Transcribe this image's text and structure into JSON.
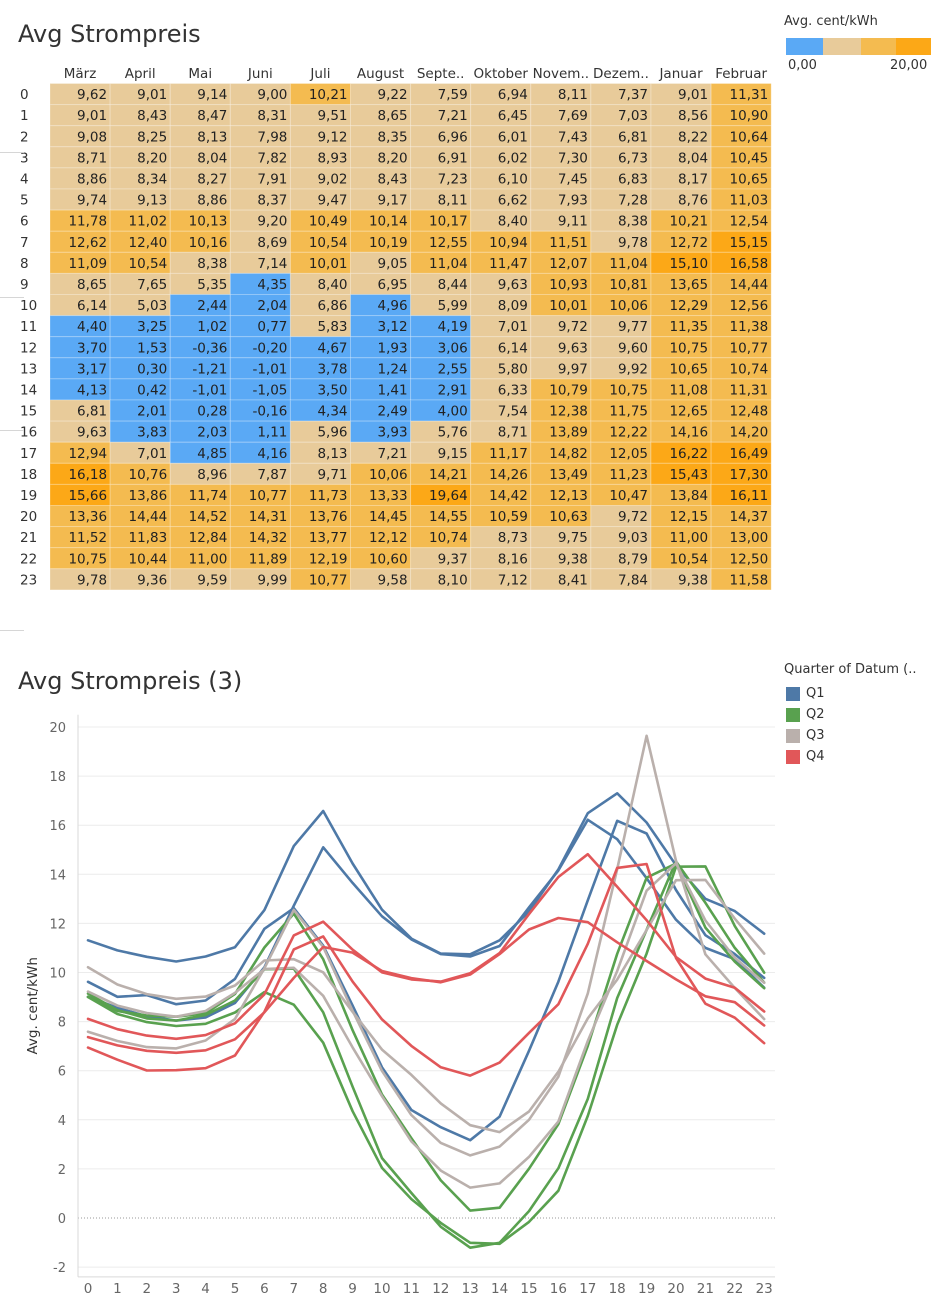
{
  "heatmap": {
    "title": "Avg Strompreis",
    "legend_title": "Avg. cent/kWh",
    "legend_min": "0,00",
    "legend_max": "20,00",
    "legend_colors": [
      "#5aa9f5",
      "#e8cb9a",
      "#f4bb50",
      "#fca817"
    ],
    "months": [
      "März",
      "April",
      "Mai",
      "Juni",
      "Juli",
      "August",
      "Septe..",
      "Oktober",
      "Novem..",
      "Dezem..",
      "Januar",
      "Februar"
    ],
    "hours": [
      "0",
      "1",
      "2",
      "3",
      "4",
      "5",
      "6",
      "7",
      "8",
      "9",
      "10",
      "11",
      "12",
      "13",
      "14",
      "15",
      "16",
      "17",
      "18",
      "19",
      "20",
      "21",
      "22",
      "23"
    ],
    "rows": [
      [
        "9,62",
        "9,01",
        "9,14",
        "9,00",
        "10,21",
        "9,22",
        "7,59",
        "6,94",
        "8,11",
        "7,37",
        "9,01",
        "11,31"
      ],
      [
        "9,01",
        "8,43",
        "8,47",
        "8,31",
        "9,51",
        "8,65",
        "7,21",
        "6,45",
        "7,69",
        "7,03",
        "8,56",
        "10,90"
      ],
      [
        "9,08",
        "8,25",
        "8,13",
        "7,98",
        "9,12",
        "8,35",
        "6,96",
        "6,01",
        "7,43",
        "6,81",
        "8,22",
        "10,64"
      ],
      [
        "8,71",
        "8,20",
        "8,04",
        "7,82",
        "8,93",
        "8,20",
        "6,91",
        "6,02",
        "7,30",
        "6,73",
        "8,04",
        "10,45"
      ],
      [
        "8,86",
        "8,34",
        "8,27",
        "7,91",
        "9,02",
        "8,43",
        "7,23",
        "6,10",
        "7,45",
        "6,83",
        "8,17",
        "10,65"
      ],
      [
        "9,74",
        "9,13",
        "8,86",
        "8,37",
        "9,47",
        "9,17",
        "8,11",
        "6,62",
        "7,93",
        "7,28",
        "8,76",
        "11,03"
      ],
      [
        "11,78",
        "11,02",
        "10,13",
        "9,20",
        "10,49",
        "10,14",
        "10,17",
        "8,40",
        "9,11",
        "8,38",
        "10,21",
        "12,54"
      ],
      [
        "12,62",
        "12,40",
        "10,16",
        "8,69",
        "10,54",
        "10,19",
        "12,55",
        "10,94",
        "11,51",
        "9,78",
        "12,72",
        "15,15"
      ],
      [
        "11,09",
        "10,54",
        "8,38",
        "7,14",
        "10,01",
        "9,05",
        "11,04",
        "11,47",
        "12,07",
        "11,04",
        "15,10",
        "16,58"
      ],
      [
        "8,65",
        "7,65",
        "5,35",
        "4,35",
        "8,40",
        "6,95",
        "8,44",
        "9,63",
        "10,93",
        "10,81",
        "13,65",
        "14,44"
      ],
      [
        "6,14",
        "5,03",
        "2,44",
        "2,04",
        "6,86",
        "4,96",
        "5,99",
        "8,09",
        "10,01",
        "10,06",
        "12,29",
        "12,56"
      ],
      [
        "4,40",
        "3,25",
        "1,02",
        "0,77",
        "5,83",
        "3,12",
        "4,19",
        "7,01",
        "9,72",
        "9,77",
        "11,35",
        "11,38"
      ],
      [
        "3,70",
        "1,53",
        "-0,36",
        "-0,20",
        "4,67",
        "1,93",
        "3,06",
        "6,14",
        "9,63",
        "9,60",
        "10,75",
        "10,77"
      ],
      [
        "3,17",
        "0,30",
        "-1,21",
        "-1,01",
        "3,78",
        "1,24",
        "2,55",
        "5,80",
        "9,97",
        "9,92",
        "10,65",
        "10,74"
      ],
      [
        "4,13",
        "0,42",
        "-1,01",
        "-1,05",
        "3,50",
        "1,41",
        "2,91",
        "6,33",
        "10,79",
        "10,75",
        "11,08",
        "11,31"
      ],
      [
        "6,81",
        "2,01",
        "0,28",
        "-0,16",
        "4,34",
        "2,49",
        "4,00",
        "7,54",
        "12,38",
        "11,75",
        "12,65",
        "12,48"
      ],
      [
        "9,63",
        "3,83",
        "2,03",
        "1,11",
        "5,96",
        "3,93",
        "5,76",
        "8,71",
        "13,89",
        "12,22",
        "14,16",
        "14,20"
      ],
      [
        "12,94",
        "7,01",
        "4,85",
        "4,16",
        "8,13",
        "7,21",
        "9,15",
        "11,17",
        "14,82",
        "12,05",
        "16,22",
        "16,49"
      ],
      [
        "16,18",
        "10,76",
        "8,96",
        "7,87",
        "9,71",
        "10,06",
        "14,21",
        "14,26",
        "13,49",
        "11,23",
        "15,43",
        "17,30"
      ],
      [
        "15,66",
        "13,86",
        "11,74",
        "10,77",
        "11,73",
        "13,33",
        "19,64",
        "14,42",
        "12,13",
        "10,47",
        "13,84",
        "16,11"
      ],
      [
        "13,36",
        "14,44",
        "14,52",
        "14,31",
        "13,76",
        "14,45",
        "14,55",
        "10,59",
        "10,63",
        "9,72",
        "12,15",
        "14,37"
      ],
      [
        "11,52",
        "11,83",
        "12,84",
        "14,32",
        "13,77",
        "12,12",
        "10,74",
        "8,73",
        "9,75",
        "9,03",
        "11,00",
        "13,00"
      ],
      [
        "10,75",
        "10,44",
        "11,00",
        "11,89",
        "12,19",
        "10,60",
        "9,37",
        "8,16",
        "9,38",
        "8,79",
        "10,54",
        "12,50"
      ],
      [
        "9,78",
        "9,36",
        "9,59",
        "9,99",
        "10,77",
        "9,58",
        "8,10",
        "7,12",
        "8,41",
        "7,84",
        "9,38",
        "11,58"
      ]
    ]
  },
  "chart_data": {
    "type": "line",
    "title": "Avg Strompreis (3)",
    "ylabel": "Avg. cent/kWh",
    "xlabel": "",
    "legend_title": "Quarter of Datum (..",
    "x": [
      0,
      1,
      2,
      3,
      4,
      5,
      6,
      7,
      8,
      9,
      10,
      11,
      12,
      13,
      14,
      15,
      16,
      17,
      18,
      19,
      20,
      21,
      22,
      23
    ],
    "ylim": [
      -2.4,
      20.5
    ],
    "yticks": [
      -2,
      0,
      2,
      4,
      6,
      8,
      10,
      12,
      14,
      16,
      18,
      20
    ],
    "series": [
      {
        "name": "Q1",
        "color": "#4e79a7",
        "values": [
          9.62,
          9.01,
          9.08,
          8.71,
          8.86,
          9.74,
          11.78,
          12.62,
          11.09,
          8.65,
          6.14,
          4.4,
          3.7,
          3.17,
          4.13,
          6.81,
          9.63,
          12.94,
          16.18,
          15.66,
          13.36,
          11.52,
          10.75,
          9.78
        ]
      },
      {
        "name": "Q1",
        "color": "#4e79a7",
        "values": [
          9.01,
          8.56,
          8.22,
          8.04,
          8.17,
          8.76,
          10.21,
          12.72,
          15.1,
          13.65,
          12.29,
          11.35,
          10.75,
          10.65,
          11.08,
          12.65,
          14.16,
          16.22,
          15.43,
          13.84,
          12.15,
          11.0,
          10.54,
          9.38
        ]
      },
      {
        "name": "Q1",
        "color": "#4e79a7",
        "values": [
          11.31,
          10.9,
          10.64,
          10.45,
          10.65,
          11.03,
          12.54,
          15.15,
          16.58,
          14.44,
          12.56,
          11.38,
          10.77,
          10.74,
          11.31,
          12.48,
          14.2,
          16.49,
          17.3,
          16.11,
          14.37,
          13.0,
          12.5,
          11.58
        ]
      },
      {
        "name": "Q2",
        "color": "#59a14f",
        "values": [
          9.01,
          8.43,
          8.25,
          8.2,
          8.34,
          9.13,
          11.02,
          12.4,
          10.54,
          7.65,
          5.03,
          3.25,
          1.53,
          0.3,
          0.42,
          2.01,
          3.83,
          7.01,
          10.76,
          13.86,
          14.44,
          11.83,
          10.44,
          9.36
        ]
      },
      {
        "name": "Q2",
        "color": "#59a14f",
        "values": [
          9.14,
          8.47,
          8.13,
          8.04,
          8.27,
          8.86,
          10.13,
          10.16,
          8.38,
          5.35,
          2.44,
          1.02,
          -0.36,
          -1.21,
          -1.01,
          0.28,
          2.03,
          4.85,
          8.96,
          11.74,
          14.52,
          12.84,
          11.0,
          9.59
        ]
      },
      {
        "name": "Q2",
        "color": "#59a14f",
        "values": [
          9.0,
          8.31,
          7.98,
          7.82,
          7.91,
          8.37,
          9.2,
          8.69,
          7.14,
          4.35,
          2.04,
          0.77,
          -0.2,
          -1.01,
          -1.05,
          -0.16,
          1.11,
          4.16,
          7.87,
          10.77,
          14.31,
          14.32,
          11.89,
          9.99
        ]
      },
      {
        "name": "Q3",
        "color": "#bab0ac",
        "values": [
          10.21,
          9.51,
          9.12,
          8.93,
          9.02,
          9.47,
          10.49,
          10.54,
          10.01,
          8.4,
          6.86,
          5.83,
          4.67,
          3.78,
          3.5,
          4.34,
          5.96,
          8.13,
          9.71,
          11.73,
          13.76,
          13.77,
          12.19,
          10.77
        ]
      },
      {
        "name": "Q3",
        "color": "#bab0ac",
        "values": [
          9.22,
          8.65,
          8.35,
          8.2,
          8.43,
          9.17,
          10.14,
          10.19,
          9.05,
          6.95,
          4.96,
          3.12,
          1.93,
          1.24,
          1.41,
          2.49,
          3.93,
          7.21,
          10.06,
          13.33,
          14.45,
          12.12,
          10.6,
          9.58
        ]
      },
      {
        "name": "Q3",
        "color": "#bab0ac",
        "values": [
          7.59,
          7.21,
          6.96,
          6.91,
          7.23,
          8.11,
          10.17,
          12.55,
          11.04,
          8.44,
          5.99,
          4.19,
          3.06,
          2.55,
          2.91,
          4.0,
          5.76,
          9.15,
          14.21,
          19.64,
          14.55,
          10.74,
          9.37,
          8.1
        ]
      },
      {
        "name": "Q4",
        "color": "#e15759",
        "values": [
          6.94,
          6.45,
          6.01,
          6.02,
          6.1,
          6.62,
          8.4,
          10.94,
          11.47,
          9.63,
          8.09,
          7.01,
          6.14,
          5.8,
          6.33,
          7.54,
          8.71,
          11.17,
          14.26,
          14.42,
          10.59,
          8.73,
          8.16,
          7.12
        ]
      },
      {
        "name": "Q4",
        "color": "#e15759",
        "values": [
          8.11,
          7.69,
          7.43,
          7.3,
          7.45,
          7.93,
          9.11,
          11.51,
          12.07,
          10.93,
          10.01,
          9.72,
          9.63,
          9.97,
          10.79,
          12.38,
          13.89,
          14.82,
          13.49,
          12.13,
          10.63,
          9.75,
          9.38,
          8.41
        ]
      },
      {
        "name": "Q4",
        "color": "#e15759",
        "values": [
          7.37,
          7.03,
          6.81,
          6.73,
          6.83,
          7.28,
          8.38,
          9.78,
          11.04,
          10.81,
          10.06,
          9.77,
          9.6,
          9.92,
          10.75,
          11.75,
          12.22,
          12.05,
          11.23,
          10.47,
          9.72,
          9.03,
          8.79,
          7.84
        ]
      }
    ],
    "legend": [
      {
        "name": "Q1",
        "color": "#4e79a7"
      },
      {
        "name": "Q2",
        "color": "#59a14f"
      },
      {
        "name": "Q3",
        "color": "#bab0ac"
      },
      {
        "name": "Q4",
        "color": "#e15759"
      }
    ]
  }
}
